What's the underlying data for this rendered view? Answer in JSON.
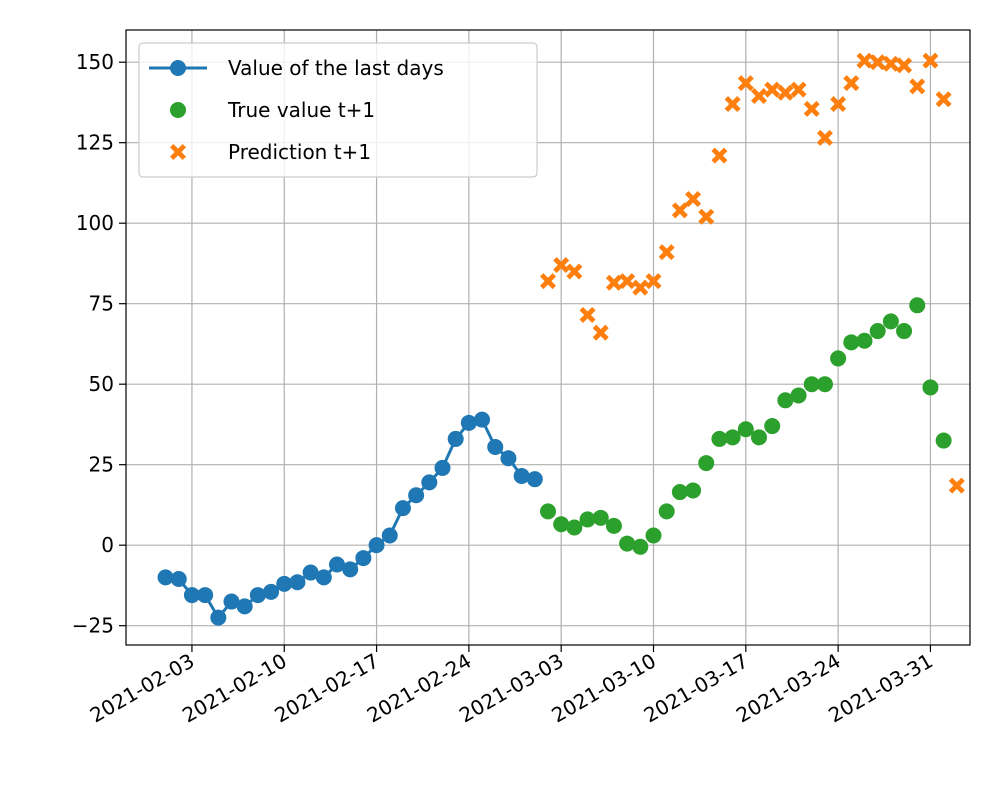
{
  "chart_data": {
    "type": "line",
    "title": "",
    "xlabel": "",
    "ylabel": "",
    "xlim": [
      "2021-01-29",
      "2021-04-03"
    ],
    "ylim": [
      -31,
      160
    ],
    "x_ticks": [
      "2021-02-03",
      "2021-02-10",
      "2021-02-17",
      "2021-02-24",
      "2021-03-03",
      "2021-03-10",
      "2021-03-17",
      "2021-03-24",
      "2021-03-31"
    ],
    "y_ticks": [
      -25,
      0,
      25,
      50,
      75,
      100,
      125,
      150
    ],
    "grid": true,
    "legend_position": "top-left",
    "series": [
      {
        "name": "Value of the last days",
        "style": "line-markers",
        "marker": "circle",
        "color": "#1f77b4",
        "points": [
          {
            "x": "2021-02-01",
            "y": -10
          },
          {
            "x": "2021-02-02",
            "y": -10.5
          },
          {
            "x": "2021-02-03",
            "y": -15.5
          },
          {
            "x": "2021-02-04",
            "y": -15.5
          },
          {
            "x": "2021-02-05",
            "y": -22.5
          },
          {
            "x": "2021-02-06",
            "y": -17.5
          },
          {
            "x": "2021-02-07",
            "y": -19
          },
          {
            "x": "2021-02-08",
            "y": -15.5
          },
          {
            "x": "2021-02-09",
            "y": -14.5
          },
          {
            "x": "2021-02-10",
            "y": -12
          },
          {
            "x": "2021-02-11",
            "y": -11.5
          },
          {
            "x": "2021-02-12",
            "y": -8.5
          },
          {
            "x": "2021-02-13",
            "y": -10
          },
          {
            "x": "2021-02-14",
            "y": -6
          },
          {
            "x": "2021-02-15",
            "y": -7.5
          },
          {
            "x": "2021-02-16",
            "y": -4
          },
          {
            "x": "2021-02-17",
            "y": 0
          },
          {
            "x": "2021-02-18",
            "y": 3
          },
          {
            "x": "2021-02-19",
            "y": 11.5
          },
          {
            "x": "2021-02-20",
            "y": 15.5
          },
          {
            "x": "2021-02-21",
            "y": 19.5
          },
          {
            "x": "2021-02-22",
            "y": 24
          },
          {
            "x": "2021-02-23",
            "y": 33
          },
          {
            "x": "2021-02-24",
            "y": 38
          },
          {
            "x": "2021-02-25",
            "y": 39
          },
          {
            "x": "2021-02-26",
            "y": 30.5
          },
          {
            "x": "2021-02-27",
            "y": 27
          },
          {
            "x": "2021-02-28",
            "y": 21.5
          },
          {
            "x": "2021-03-01",
            "y": 20.5
          }
        ]
      },
      {
        "name": "True value t+1",
        "style": "markers",
        "marker": "circle",
        "color": "#2ca02c",
        "points": [
          {
            "x": "2021-03-02",
            "y": 10.5
          },
          {
            "x": "2021-03-03",
            "y": 6.5
          },
          {
            "x": "2021-03-04",
            "y": 5.5
          },
          {
            "x": "2021-03-05",
            "y": 8
          },
          {
            "x": "2021-03-06",
            "y": 8.5
          },
          {
            "x": "2021-03-07",
            "y": 6
          },
          {
            "x": "2021-03-08",
            "y": 0.5
          },
          {
            "x": "2021-03-09",
            "y": -0.5
          },
          {
            "x": "2021-03-10",
            "y": 3
          },
          {
            "x": "2021-03-11",
            "y": 10.5
          },
          {
            "x": "2021-03-12",
            "y": 16.5
          },
          {
            "x": "2021-03-13",
            "y": 17
          },
          {
            "x": "2021-03-14",
            "y": 25.5
          },
          {
            "x": "2021-03-15",
            "y": 33
          },
          {
            "x": "2021-03-16",
            "y": 33.5
          },
          {
            "x": "2021-03-17",
            "y": 36
          },
          {
            "x": "2021-03-18",
            "y": 33.5
          },
          {
            "x": "2021-03-19",
            "y": 37
          },
          {
            "x": "2021-03-20",
            "y": 45
          },
          {
            "x": "2021-03-21",
            "y": 46.5
          },
          {
            "x": "2021-03-22",
            "y": 50
          },
          {
            "x": "2021-03-23",
            "y": 50
          },
          {
            "x": "2021-03-24",
            "y": 58
          },
          {
            "x": "2021-03-25",
            "y": 63
          },
          {
            "x": "2021-03-26",
            "y": 63.5
          },
          {
            "x": "2021-03-27",
            "y": 66.5
          },
          {
            "x": "2021-03-28",
            "y": 69.5
          },
          {
            "x": "2021-03-29",
            "y": 66.5
          },
          {
            "x": "2021-03-30",
            "y": 74.5
          },
          {
            "x": "2021-03-31",
            "y": 49
          },
          {
            "x": "2021-04-01",
            "y": 32.5
          }
        ]
      },
      {
        "name": "Prediction t+1",
        "style": "markers",
        "marker": "x-filled",
        "color": "#ff7f0e",
        "points": [
          {
            "x": "2021-03-02",
            "y": 82
          },
          {
            "x": "2021-03-03",
            "y": 87
          },
          {
            "x": "2021-03-04",
            "y": 85
          },
          {
            "x": "2021-03-05",
            "y": 71.5
          },
          {
            "x": "2021-03-06",
            "y": 66
          },
          {
            "x": "2021-03-07",
            "y": 81.5
          },
          {
            "x": "2021-03-08",
            "y": 82
          },
          {
            "x": "2021-03-09",
            "y": 80
          },
          {
            "x": "2021-03-10",
            "y": 82
          },
          {
            "x": "2021-03-11",
            "y": 91
          },
          {
            "x": "2021-03-12",
            "y": 104
          },
          {
            "x": "2021-03-13",
            "y": 107.5
          },
          {
            "x": "2021-03-14",
            "y": 102
          },
          {
            "x": "2021-03-15",
            "y": 121
          },
          {
            "x": "2021-03-16",
            "y": 137
          },
          {
            "x": "2021-03-17",
            "y": 143.5
          },
          {
            "x": "2021-03-18",
            "y": 139.5
          },
          {
            "x": "2021-03-19",
            "y": 141.5
          },
          {
            "x": "2021-03-20",
            "y": 140.5
          },
          {
            "x": "2021-03-21",
            "y": 141.5
          },
          {
            "x": "2021-03-22",
            "y": 135.5
          },
          {
            "x": "2021-03-23",
            "y": 126.5
          },
          {
            "x": "2021-03-24",
            "y": 137
          },
          {
            "x": "2021-03-25",
            "y": 143.5
          },
          {
            "x": "2021-03-26",
            "y": 150.5
          },
          {
            "x": "2021-03-27",
            "y": 150
          },
          {
            "x": "2021-03-28",
            "y": 149.5
          },
          {
            "x": "2021-03-29",
            "y": 149
          },
          {
            "x": "2021-03-30",
            "y": 142.5
          },
          {
            "x": "2021-03-31",
            "y": 150.5
          },
          {
            "x": "2021-04-01",
            "y": 138.5
          },
          {
            "x": "2021-04-02",
            "y": 18.5
          }
        ]
      }
    ]
  }
}
